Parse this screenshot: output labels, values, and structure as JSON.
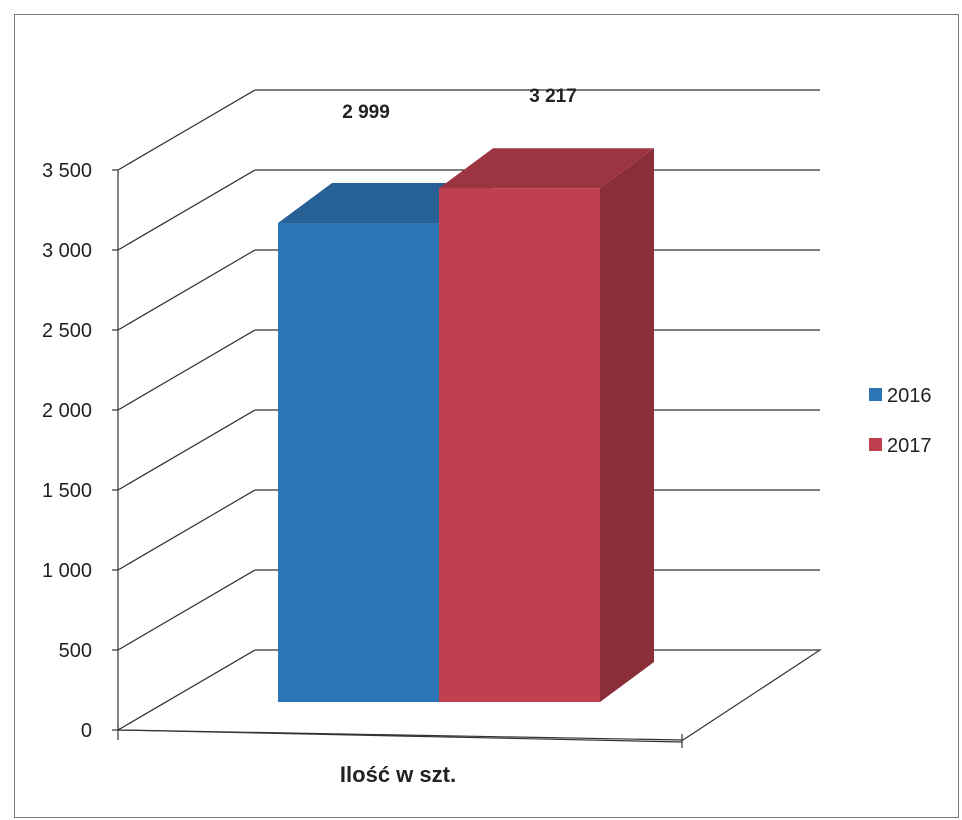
{
  "chart_data": {
    "type": "bar",
    "categories": [
      "Ilość w szt."
    ],
    "series": [
      {
        "name": "2016",
        "values": [
          2999
        ],
        "label": "2 999",
        "color": "#2e75b6"
      },
      {
        "name": "2017",
        "values": [
          3217
        ],
        "label": "3 217",
        "color": "#c0404f"
      }
    ],
    "y_ticks": [
      {
        "value": 0,
        "label": "0"
      },
      {
        "value": 500,
        "label": "500"
      },
      {
        "value": 1000,
        "label": "1 000"
      },
      {
        "value": 1500,
        "label": "1 500"
      },
      {
        "value": 2000,
        "label": "2 000"
      },
      {
        "value": 2500,
        "label": "2 500"
      },
      {
        "value": 3000,
        "label": "3 000"
      },
      {
        "value": 3500,
        "label": "3 500"
      }
    ],
    "ylim": [
      0,
      3500
    ],
    "grid": true,
    "legend_position": "right",
    "style": "3d-column"
  }
}
